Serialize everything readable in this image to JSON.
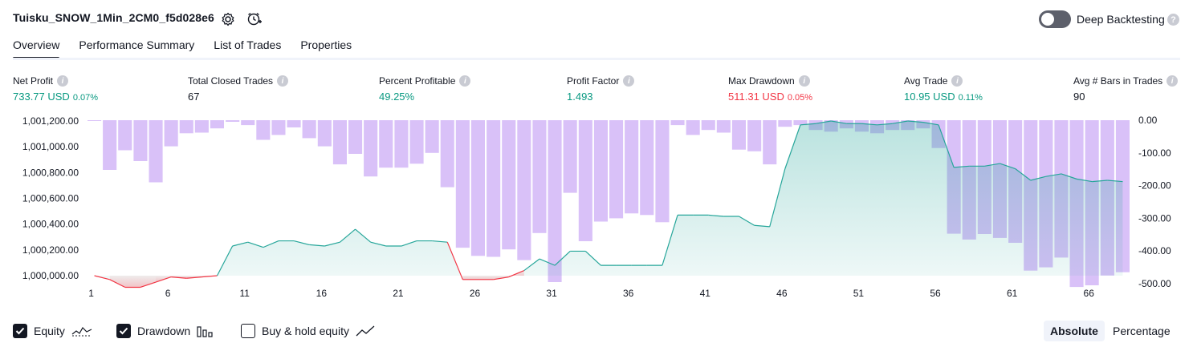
{
  "header": {
    "title": "Tuisku_SNOW_1Min_2CM0_f5d028e6",
    "deep_backtesting_label": "Deep Backtesting",
    "help_glyph": "?"
  },
  "tabs": [
    "Overview",
    "Performance Summary",
    "List of Trades",
    "Properties"
  ],
  "metrics": [
    {
      "label": "Net Profit",
      "value": "733.77 USD",
      "pct": "0.07%",
      "color": "green"
    },
    {
      "label": "Total Closed Trades",
      "value": "67",
      "pct": "",
      "color": "dark"
    },
    {
      "label": "Percent Profitable",
      "value": "49.25%",
      "pct": "",
      "color": "green"
    },
    {
      "label": "Profit Factor",
      "value": "1.493",
      "pct": "",
      "color": "green"
    },
    {
      "label": "Max Drawdown",
      "value": "511.31 USD",
      "pct": "0.05%",
      "color": "red"
    },
    {
      "label": "Avg Trade",
      "value": "10.95 USD",
      "pct": "0.11%",
      "color": "green"
    },
    {
      "label": "Avg # Bars in Trades",
      "value": "90",
      "pct": "",
      "color": "dark"
    }
  ],
  "legend": {
    "equity": "Equity",
    "drawdown": "Drawdown",
    "buy_hold": "Buy & hold equity"
  },
  "toggle": {
    "absolute": "Absolute",
    "percentage": "Percentage"
  },
  "colors": {
    "equity_up": "#26a69a",
    "equity_down": "#f23645",
    "drawdown": "#c9a6f5",
    "text": "#131722",
    "accent_green": "#089981",
    "accent_red": "#f23645"
  },
  "icons": {
    "settings": "gear-icon",
    "alert": "alert-clock-icon"
  },
  "chart_data": {
    "type": "bar+area",
    "left_ticks": [
      "1,001,200.00",
      "1,001,000.00",
      "1,000,800.00",
      "1,000,600.00",
      "1,000,400.00",
      "1,000,200.00",
      "1,000,000.00"
    ],
    "right_ticks": [
      "0.00",
      "-100.00",
      "-200.00",
      "-300.00",
      "-400.00",
      "-500.00"
    ],
    "x_ticks": [
      "1",
      "6",
      "11",
      "16",
      "21",
      "26",
      "31",
      "36",
      "41",
      "46",
      "51",
      "56",
      "61",
      "66"
    ],
    "equity_ylim": [
      1000000,
      1001200
    ],
    "drawdown_ylim": [
      -500,
      0
    ],
    "equity": [
      1000000,
      999970,
      999910,
      999910,
      999950,
      999990,
      999980,
      999990,
      1000000,
      1000230,
      1000260,
      1000220,
      1000270,
      1000270,
      1000240,
      1000230,
      1000260,
      1000360,
      1000260,
      1000230,
      1000230,
      1000270,
      1000270,
      1000260,
      999970,
      999970,
      999970,
      999990,
      1000040,
      1000130,
      1000080,
      1000190,
      1000190,
      1000080,
      1000080,
      1000080,
      1000080,
      1000080,
      1000470,
      1000470,
      1000470,
      1000460,
      1000460,
      1000390,
      1000380,
      1000830,
      1001170,
      1001180,
      1001200,
      1001180,
      1001180,
      1001170,
      1001180,
      1001200,
      1001190,
      1001170,
      1000840,
      1000850,
      1000850,
      1000870,
      1000830,
      1000740,
      1000770,
      1000790,
      1000750,
      1000730,
      1000740,
      1000730
    ],
    "drawdown": [
      0,
      -152,
      -92,
      -125,
      -190,
      -80,
      -40,
      -38,
      -25,
      -5,
      -15,
      -60,
      -45,
      -22,
      -55,
      -80,
      -135,
      -103,
      -172,
      -145,
      -145,
      -133,
      -100,
      -205,
      -390,
      -415,
      -418,
      -395,
      -428,
      -345,
      -495,
      -222,
      -370,
      -310,
      -300,
      -285,
      -290,
      -312,
      -15,
      -45,
      -30,
      -38,
      -90,
      -95,
      -135,
      -20,
      -15,
      -30,
      -35,
      -25,
      -35,
      -40,
      -30,
      -30,
      -25,
      -85,
      -347,
      -365,
      -348,
      -360,
      -375,
      -460,
      -450,
      -420,
      -510,
      -505,
      -475,
      -465
    ]
  }
}
